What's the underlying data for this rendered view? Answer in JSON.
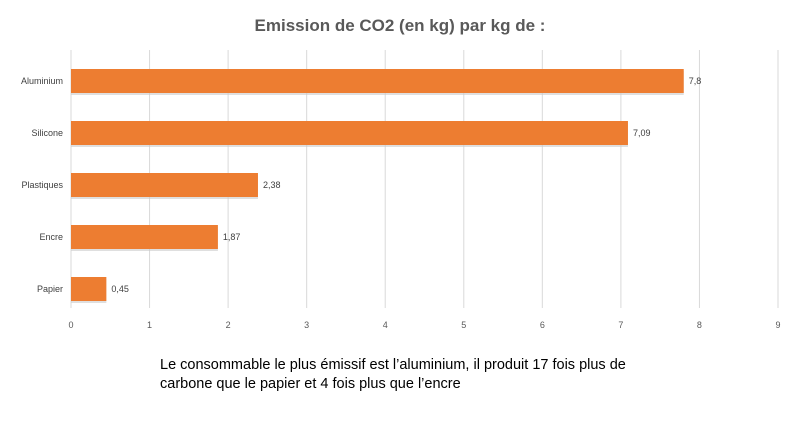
{
  "chart_data": {
    "type": "bar",
    "orientation": "horizontal",
    "title": "Emission de CO2 (en kg) par kg de :",
    "categories": [
      "Aluminium",
      "Silicone",
      "Plastiques",
      "Encre",
      "Papier"
    ],
    "values": [
      7.8,
      7.09,
      2.38,
      1.87,
      0.45
    ],
    "value_labels": [
      "7,8",
      "7,09",
      "2,38",
      "1,87",
      "0,45"
    ],
    "x_ticks": [
      "0",
      "1",
      "2",
      "3",
      "4",
      "5",
      "6",
      "7",
      "8",
      "9"
    ],
    "xlim": [
      0,
      9
    ],
    "grid": "vertical",
    "legend": "none",
    "bar_color": "#ED7D31",
    "grid_color": "#D9D9D9"
  },
  "annotation": "Le consommable le plus émissif est l’aluminium, il produit 17 fois plus de carbone que le papier et 4 fois plus que l’encre"
}
